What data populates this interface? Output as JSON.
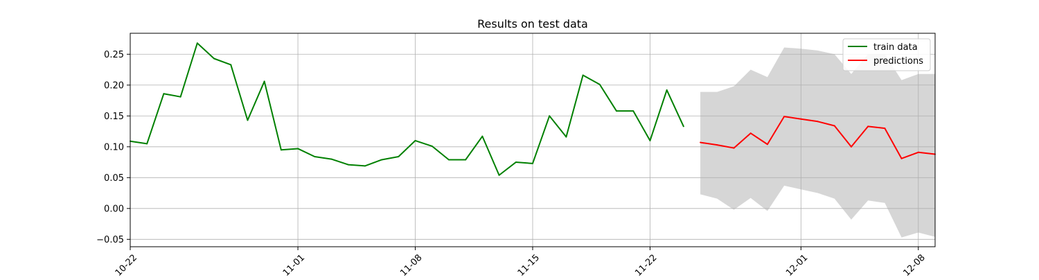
{
  "chart_data": {
    "type": "line",
    "title": "Results on test data",
    "xlabel": "",
    "ylabel": "",
    "x_axis": {
      "type": "date",
      "range": [
        "2023-10-22",
        "2023-12-09"
      ],
      "ticks": [
        {
          "date": "2023-10-22",
          "label": "10-22"
        },
        {
          "date": "2023-11-01",
          "label": "11-01"
        },
        {
          "date": "2023-11-08",
          "label": "11-08"
        },
        {
          "date": "2023-11-15",
          "label": "11-15"
        },
        {
          "date": "2023-11-22",
          "label": "11-22"
        },
        {
          "date": "2023-12-01",
          "label": "12-01"
        },
        {
          "date": "2023-12-08",
          "label": "12-08"
        }
      ]
    },
    "y_axis": {
      "range": [
        -0.062,
        0.284
      ],
      "ticks": [
        {
          "value": -0.05,
          "label": "−0.05"
        },
        {
          "value": 0.0,
          "label": "0.00"
        },
        {
          "value": 0.05,
          "label": "0.05"
        },
        {
          "value": 0.1,
          "label": "0.10"
        },
        {
          "value": 0.15,
          "label": "0.15"
        },
        {
          "value": 0.2,
          "label": "0.20"
        },
        {
          "value": 0.25,
          "label": "0.25"
        }
      ]
    },
    "grid": true,
    "legend_position": "top-right",
    "series": [
      {
        "name": "train data",
        "color": "#008000",
        "points": [
          {
            "x": "2023-10-22",
            "y": 0.109
          },
          {
            "x": "2023-10-23",
            "y": 0.105
          },
          {
            "x": "2023-10-24",
            "y": 0.186
          },
          {
            "x": "2023-10-25",
            "y": 0.181
          },
          {
            "x": "2023-10-26",
            "y": 0.268
          },
          {
            "x": "2023-10-27",
            "y": 0.243
          },
          {
            "x": "2023-10-28",
            "y": 0.233
          },
          {
            "x": "2023-10-29",
            "y": 0.143
          },
          {
            "x": "2023-10-30",
            "y": 0.206
          },
          {
            "x": "2023-10-31",
            "y": 0.095
          },
          {
            "x": "2023-11-01",
            "y": 0.097
          },
          {
            "x": "2023-11-02",
            "y": 0.084
          },
          {
            "x": "2023-11-03",
            "y": 0.08
          },
          {
            "x": "2023-11-04",
            "y": 0.071
          },
          {
            "x": "2023-11-05",
            "y": 0.069
          },
          {
            "x": "2023-11-06",
            "y": 0.079
          },
          {
            "x": "2023-11-07",
            "y": 0.084
          },
          {
            "x": "2023-11-08",
            "y": 0.11
          },
          {
            "x": "2023-11-09",
            "y": 0.101
          },
          {
            "x": "2023-11-10",
            "y": 0.079
          },
          {
            "x": "2023-11-11",
            "y": 0.079
          },
          {
            "x": "2023-11-12",
            "y": 0.117
          },
          {
            "x": "2023-11-13",
            "y": 0.054
          },
          {
            "x": "2023-11-14",
            "y": 0.075
          },
          {
            "x": "2023-11-15",
            "y": 0.073
          },
          {
            "x": "2023-11-16",
            "y": 0.15
          },
          {
            "x": "2023-11-17",
            "y": 0.116
          },
          {
            "x": "2023-11-18",
            "y": 0.216
          },
          {
            "x": "2023-11-19",
            "y": 0.201
          },
          {
            "x": "2023-11-20",
            "y": 0.158
          },
          {
            "x": "2023-11-21",
            "y": 0.158
          },
          {
            "x": "2023-11-22",
            "y": 0.11
          },
          {
            "x": "2023-11-23",
            "y": 0.192
          },
          {
            "x": "2023-11-24",
            "y": 0.133
          }
        ]
      },
      {
        "name": "predictions",
        "color": "#ff0000",
        "points": [
          {
            "x": "2023-11-25",
            "y": 0.107
          },
          {
            "x": "2023-11-26",
            "y": 0.103
          },
          {
            "x": "2023-11-27",
            "y": 0.098
          },
          {
            "x": "2023-11-28",
            "y": 0.122
          },
          {
            "x": "2023-11-29",
            "y": 0.104
          },
          {
            "x": "2023-11-30",
            "y": 0.149
          },
          {
            "x": "2023-12-01",
            "y": 0.145
          },
          {
            "x": "2023-12-02",
            "y": 0.141
          },
          {
            "x": "2023-12-03",
            "y": 0.134
          },
          {
            "x": "2023-12-04",
            "y": 0.1
          },
          {
            "x": "2023-12-05",
            "y": 0.133
          },
          {
            "x": "2023-12-06",
            "y": 0.13
          },
          {
            "x": "2023-12-07",
            "y": 0.081
          },
          {
            "x": "2023-12-08",
            "y": 0.091
          },
          {
            "x": "2023-12-09",
            "y": 0.088
          }
        ]
      }
    ],
    "confidence_band": {
      "color": "#d6d6d6",
      "points": [
        {
          "x": "2023-11-25",
          "lower": 0.023,
          "upper": 0.189
        },
        {
          "x": "2023-11-26",
          "lower": 0.016,
          "upper": 0.189
        },
        {
          "x": "2023-11-27",
          "lower": -0.002,
          "upper": 0.198
        },
        {
          "x": "2023-11-28",
          "lower": 0.017,
          "upper": 0.225
        },
        {
          "x": "2023-11-29",
          "lower": -0.004,
          "upper": 0.213
        },
        {
          "x": "2023-11-30",
          "lower": 0.037,
          "upper": 0.261
        },
        {
          "x": "2023-12-01",
          "lower": 0.031,
          "upper": 0.259
        },
        {
          "x": "2023-12-02",
          "lower": 0.025,
          "upper": 0.256
        },
        {
          "x": "2023-12-03",
          "lower": 0.016,
          "upper": 0.25
        },
        {
          "x": "2023-12-04",
          "lower": -0.018,
          "upper": 0.218
        },
        {
          "x": "2023-12-05",
          "lower": 0.013,
          "upper": 0.25
        },
        {
          "x": "2023-12-06",
          "lower": 0.009,
          "upper": 0.25
        },
        {
          "x": "2023-12-07",
          "lower": -0.047,
          "upper": 0.208
        },
        {
          "x": "2023-12-08",
          "lower": -0.039,
          "upper": 0.218
        },
        {
          "x": "2023-12-09",
          "lower": -0.046,
          "upper": 0.218
        }
      ]
    }
  }
}
